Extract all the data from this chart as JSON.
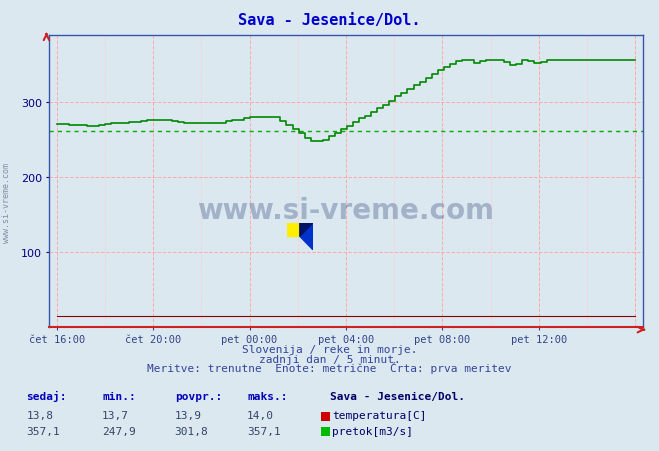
{
  "title": "Sava - Jesenice/Dol.",
  "title_color": "#0000cc",
  "bg_color": "#dce8f0",
  "plot_bg_color": "#dce8f0",
  "ylim": [
    0,
    390
  ],
  "yticks": [
    100,
    200,
    300
  ],
  "ylabel_color": "#000080",
  "xlabel_color": "#334488",
  "xtick_labels": [
    "čet 16:00",
    "čet 20:00",
    "pet 00:00",
    "pet 04:00",
    "pet 08:00",
    "pet 12:00"
  ],
  "n_points": 288,
  "temp_value": 13.8,
  "flow_avg_line": 262.0,
  "temp_line_color": "#880000",
  "flow_line_color": "#008800",
  "flow_avg_line_color": "#00aa00",
  "watermark": "www.si-vreme.com",
  "subtitle1": "Slovenija / reke in morje.",
  "subtitle2": "zadnji dan / 5 minut.",
  "subtitle3": "Meritve: trenutne  Enote: metrične  Črta: prva meritev",
  "legend_title": "Sava - Jesenice/Dol.",
  "legend_temp": "temperatura[C]",
  "legend_flow": "pretok[m3/s]",
  "table_headers": [
    "sedaj:",
    "min.:",
    "povpr.:",
    "maks.:"
  ],
  "table_temp": [
    "13,8",
    "13,7",
    "13,9",
    "14,0"
  ],
  "table_flow": [
    "357,1",
    "247,9",
    "301,8",
    "357,1"
  ],
  "flow_min": 247.9,
  "flow_max": 357.1
}
